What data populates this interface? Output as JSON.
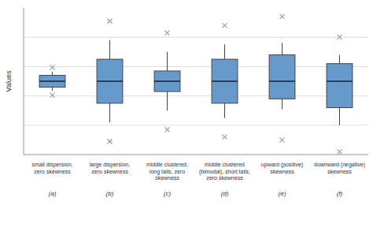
{
  "chart_data": {
    "type": "box",
    "ylabel": "Values",
    "categories": [
      "small dispersion,\nzero skewness",
      "large dispersion,\nzero skewness",
      "middle clustered,\nlong tails, zero\nskewness",
      "middle clustered\n(bimodal), short tails,\nzero skewness",
      "upward (positive)\nskewness",
      "downward (negative)\nskewness"
    ],
    "annotations": [
      "(a)",
      "(b)",
      "(c)",
      "(d)",
      "(e)",
      "(f)"
    ],
    "boxes": [
      {
        "q1": 4.6,
        "median": 5.0,
        "q3": 5.4,
        "whisker_low": 4.35,
        "whisker_high": 5.65,
        "flier_low": 4.05,
        "flier_high": 5.95
      },
      {
        "q1": 3.5,
        "median": 5.0,
        "q3": 6.5,
        "whisker_low": 2.2,
        "whisker_high": 7.8,
        "flier_low": 0.9,
        "flier_high": 9.1
      },
      {
        "q1": 4.3,
        "median": 5.0,
        "q3": 5.7,
        "whisker_low": 3.0,
        "whisker_high": 7.0,
        "flier_low": 1.7,
        "flier_high": 8.3
      },
      {
        "q1": 3.5,
        "median": 5.0,
        "q3": 6.5,
        "whisker_low": 2.5,
        "whisker_high": 7.5,
        "flier_low": 1.2,
        "flier_high": 8.8
      },
      {
        "q1": 3.8,
        "median": 5.0,
        "q3": 6.8,
        "whisker_low": 3.1,
        "whisker_high": 7.6,
        "flier_low": 1.0,
        "flier_high": 9.4
      },
      {
        "q1": 3.2,
        "median": 5.0,
        "q3": 6.2,
        "whisker_low": 2.0,
        "whisker_high": 6.8,
        "flier_low": 0.2,
        "flier_high": 8.0
      }
    ],
    "color": "#6699CC",
    "ylim": [
      0,
      10
    ],
    "yticks": [
      2,
      4,
      6,
      8
    ],
    "grid": true,
    "tick_labels": "x"
  }
}
